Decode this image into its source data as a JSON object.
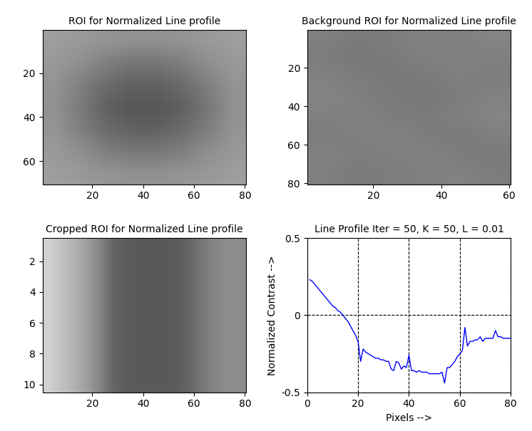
{
  "chart_data": [
    {
      "type": "image",
      "title": "ROI for Normalized Line profile",
      "xlim": [
        0.5,
        80.5
      ],
      "ylim": [
        70.5,
        0.5
      ],
      "xticks": [
        20,
        40,
        60,
        80
      ],
      "yticks": [
        20,
        40,
        60
      ],
      "cells": [
        [
          0.62,
          0.6,
          0.58,
          0.57,
          0.57,
          0.58,
          0.6,
          0.62
        ],
        [
          0.6,
          0.56,
          0.5,
          0.46,
          0.46,
          0.5,
          0.56,
          0.6
        ],
        [
          0.58,
          0.5,
          0.42,
          0.38,
          0.38,
          0.42,
          0.5,
          0.58
        ],
        [
          0.57,
          0.48,
          0.38,
          0.34,
          0.34,
          0.38,
          0.47,
          0.57
        ],
        [
          0.58,
          0.5,
          0.42,
          0.38,
          0.38,
          0.42,
          0.5,
          0.58
        ],
        [
          0.6,
          0.56,
          0.5,
          0.47,
          0.47,
          0.5,
          0.56,
          0.6
        ],
        [
          0.62,
          0.6,
          0.58,
          0.57,
          0.57,
          0.58,
          0.6,
          0.62
        ]
      ]
    },
    {
      "type": "image",
      "title": "Background ROI for Normalized Line profile",
      "xlim": [
        0.5,
        60.5
      ],
      "ylim": [
        80.5,
        0.5
      ],
      "xticks": [
        20,
        40,
        60
      ],
      "yticks": [
        20,
        40,
        60,
        80
      ],
      "cells": [
        [
          0.5,
          0.48,
          0.49,
          0.51,
          0.5,
          0.52
        ],
        [
          0.49,
          0.47,
          0.48,
          0.5,
          0.51,
          0.5
        ],
        [
          0.51,
          0.49,
          0.47,
          0.48,
          0.5,
          0.49
        ],
        [
          0.52,
          0.5,
          0.48,
          0.47,
          0.49,
          0.51
        ],
        [
          0.5,
          0.51,
          0.49,
          0.48,
          0.5,
          0.52
        ],
        [
          0.49,
          0.5,
          0.51,
          0.49,
          0.48,
          0.5
        ],
        [
          0.51,
          0.49,
          0.5,
          0.51,
          0.49,
          0.48
        ],
        [
          0.5,
          0.48,
          0.49,
          0.5,
          0.51,
          0.49
        ]
      ]
    },
    {
      "type": "image",
      "title": "Cropped ROI for Normalized Line profile",
      "xlim": [
        0.5,
        80.5
      ],
      "ylim": [
        10.5,
        0.5
      ],
      "xticks": [
        20,
        40,
        60,
        80
      ],
      "yticks": [
        2,
        4,
        6,
        8,
        10
      ],
      "cells": [
        [
          0.82,
          0.76,
          0.7,
          0.62,
          0.52,
          0.4,
          0.36,
          0.35,
          0.35,
          0.35,
          0.36,
          0.4,
          0.47,
          0.52,
          0.55,
          0.55
        ]
      ]
    },
    {
      "type": "line",
      "title": "Line Profile Iter = 50, K = 50, L = 0.01",
      "x_label": "Pixels -->",
      "y_label": "Normalized Contrast -->",
      "xlim": [
        0,
        80
      ],
      "ylim": [
        -0.5,
        0.5
      ],
      "xticks": [
        0,
        20,
        40,
        60,
        80
      ],
      "yticks": [
        -0.5,
        0,
        0.5
      ],
      "grid": true,
      "color": "#0000ff",
      "line_style": "solid",
      "x": [
        1,
        2,
        3,
        4,
        5,
        6,
        7,
        8,
        9,
        10,
        11,
        12,
        13,
        14,
        15,
        16,
        17,
        18,
        19,
        20,
        21,
        22,
        23,
        24,
        25,
        26,
        27,
        28,
        29,
        30,
        31,
        32,
        33,
        34,
        35,
        36,
        37,
        38,
        39,
        40,
        41,
        42,
        43,
        44,
        45,
        46,
        47,
        48,
        49,
        50,
        51,
        52,
        53,
        54,
        55,
        56,
        57,
        58,
        59,
        60,
        61,
        62,
        63,
        64,
        65,
        66,
        67,
        68,
        69,
        70,
        71,
        72,
        73,
        74,
        75,
        76,
        77,
        78,
        79,
        80
      ],
      "values": [
        0.23,
        0.22,
        0.2,
        0.18,
        0.16,
        0.14,
        0.12,
        0.1,
        0.08,
        0.06,
        0.05,
        0.03,
        0.02,
        0.0,
        -0.02,
        -0.04,
        -0.07,
        -0.1,
        -0.13,
        -0.17,
        -0.3,
        -0.22,
        -0.24,
        -0.25,
        -0.26,
        -0.27,
        -0.28,
        -0.28,
        -0.29,
        -0.29,
        -0.3,
        -0.3,
        -0.35,
        -0.36,
        -0.3,
        -0.31,
        -0.35,
        -0.33,
        -0.34,
        -0.26,
        -0.36,
        -0.36,
        -0.37,
        -0.36,
        -0.37,
        -0.37,
        -0.37,
        -0.38,
        -0.38,
        -0.38,
        -0.38,
        -0.38,
        -0.37,
        -0.44,
        -0.34,
        -0.34,
        -0.32,
        -0.3,
        -0.27,
        -0.25,
        -0.23,
        -0.08,
        -0.2,
        -0.17,
        -0.17,
        -0.16,
        -0.16,
        -0.14,
        -0.17,
        -0.15,
        -0.15,
        -0.15,
        -0.15,
        -0.1,
        -0.14,
        -0.14,
        -0.15,
        -0.15,
        -0.15,
        -0.15
      ]
    }
  ]
}
